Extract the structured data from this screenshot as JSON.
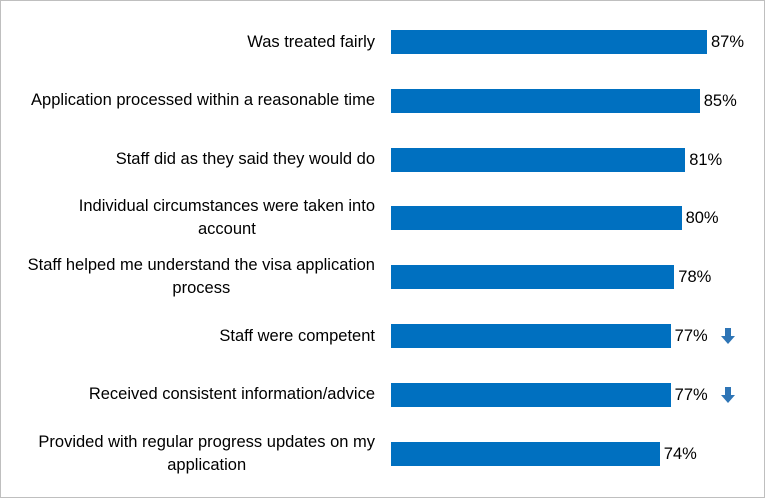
{
  "chart_data": {
    "type": "bar",
    "orientation": "horizontal",
    "bar_color": "#0070C0",
    "arrow_color": "#2E75B6",
    "xlim": [
      0,
      100
    ],
    "categories": [
      "Was treated fairly",
      "Application processed within a reasonable time",
      "Staff did as they said they would do",
      "Individual circumstances were taken into account",
      "Staff helped me understand the visa application process",
      "Staff were competent",
      "Received consistent information/advice",
      "Provided with regular progress updates on my application"
    ],
    "values": [
      87,
      85,
      81,
      80,
      78,
      77,
      77,
      74
    ],
    "data_labels": [
      "87%",
      "85%",
      "81%",
      "80%",
      "78%",
      "77%",
      "77%",
      "74%"
    ],
    "decrease_indicator": [
      false,
      false,
      false,
      false,
      false,
      true,
      true,
      false
    ],
    "decrease_icon": "down-arrow-icon"
  }
}
